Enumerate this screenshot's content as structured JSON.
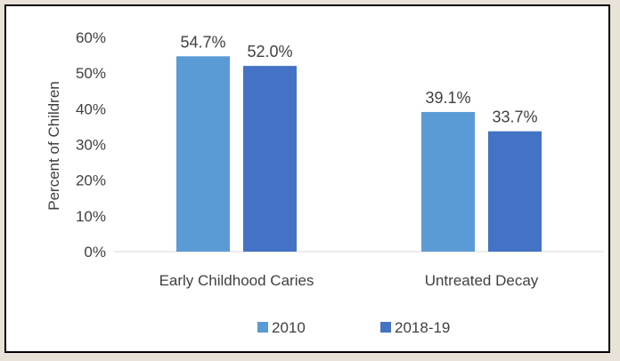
{
  "chart_data": {
    "type": "bar",
    "title": "",
    "xlabel": "",
    "ylabel": "Percent of Children",
    "ylim": [
      0,
      60
    ],
    "yticks": [
      "0%",
      "10%",
      "20%",
      "30%",
      "40%",
      "50%",
      "60%"
    ],
    "categories": [
      "Early Childhood Caries",
      "Untreated Decay"
    ],
    "series": [
      {
        "name": "2010",
        "color": "#5b9bd5",
        "values": [
          54.7,
          39.1
        ],
        "labels": [
          "54.7%",
          "39.1%"
        ]
      },
      {
        "name": "2018-19",
        "color": "#4472c4",
        "values": [
          52.0,
          33.7
        ],
        "labels": [
          "52.0%",
          "33.7%"
        ]
      }
    ],
    "grid": false,
    "legend_position": "bottom"
  }
}
